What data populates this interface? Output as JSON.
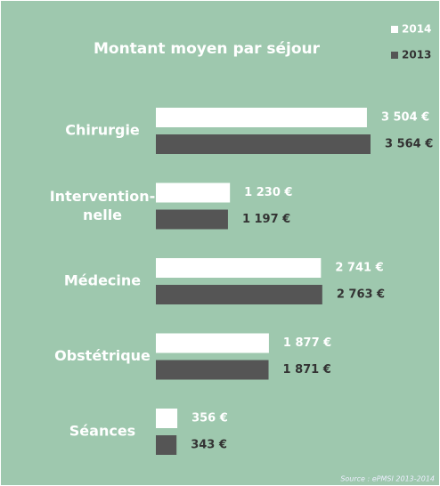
{
  "chart_data": {
    "type": "bar",
    "orientation": "horizontal",
    "title": "Montant moyen par séjour",
    "categories": [
      "Chirurgie",
      "Intervention-\nnelle",
      "Médecine",
      "Obstétrique",
      "Séances"
    ],
    "series": [
      {
        "name": "2014",
        "color": "#ffffff",
        "values": [
          3504,
          1230,
          2741,
          1877,
          356
        ],
        "value_labels": [
          "3 504 €",
          "1 230 €",
          "2 741 €",
          "1 877 €",
          "356 €"
        ]
      },
      {
        "name": "2013",
        "color": "#555555",
        "values": [
          3564,
          1197,
          2763,
          1871,
          343
        ],
        "value_labels": [
          "3 564 €",
          "1 197 €",
          "2 763 €",
          "1 871 €",
          "343 €"
        ]
      }
    ],
    "source": "Source : ePMSI 2013-2014",
    "legend": "top-right"
  }
}
